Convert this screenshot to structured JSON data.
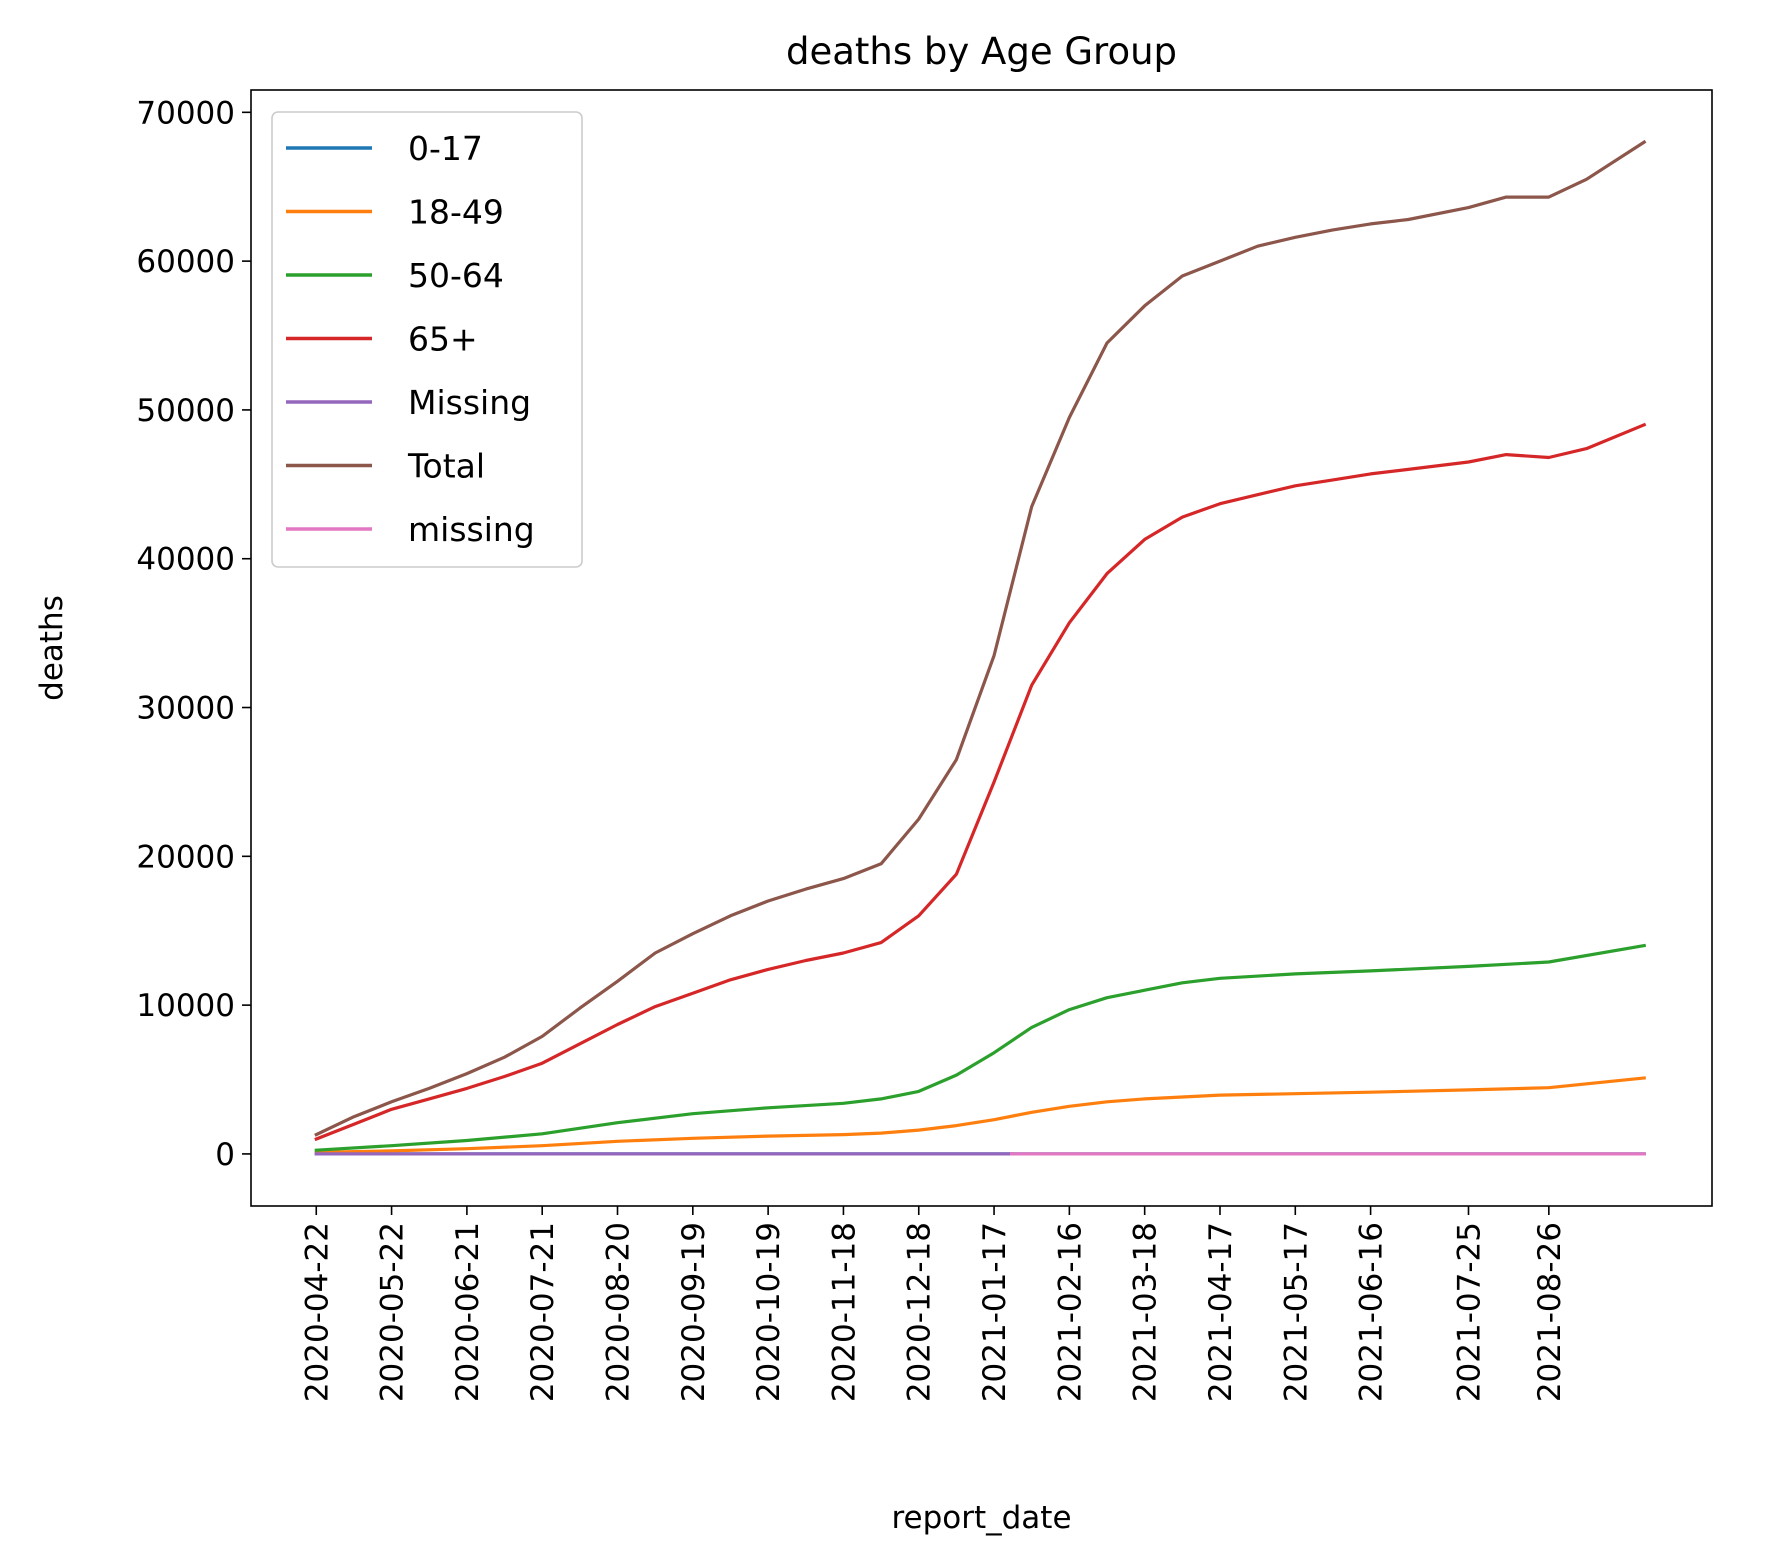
{
  "chart_data": {
    "type": "line",
    "title": "deaths by Age Group",
    "xlabel": "report_date",
    "ylabel": "deaths",
    "ylim": [
      -3500,
      71500
    ],
    "xlim": [
      "2020-03-27",
      "2021-10-30"
    ],
    "yticks": [
      0,
      10000,
      20000,
      30000,
      40000,
      50000,
      60000,
      70000
    ],
    "xticks": [
      "2020-04-22",
      "2020-05-22",
      "2020-06-21",
      "2020-07-21",
      "2020-08-20",
      "2020-09-19",
      "2020-10-19",
      "2020-11-18",
      "2020-12-18",
      "2021-01-17",
      "2021-02-16",
      "2021-03-18",
      "2021-04-17",
      "2021-05-17",
      "2021-06-16",
      "2021-07-25",
      "2021-08-26"
    ],
    "grid": false,
    "legend_position": "upper-left",
    "series": [
      {
        "name": "0-17",
        "color": "#1f77b4",
        "x": [
          "2020-04-22",
          "2021-10-03"
        ],
        "y": [
          0,
          0
        ]
      },
      {
        "name": "18-49",
        "color": "#ff7f0e",
        "x": [
          "2020-04-22",
          "2020-05-22",
          "2020-06-21",
          "2020-07-21",
          "2020-08-20",
          "2020-09-19",
          "2020-10-19",
          "2020-11-18",
          "2020-12-03",
          "2020-12-18",
          "2021-01-02",
          "2021-01-17",
          "2021-02-01",
          "2021-02-16",
          "2021-03-03",
          "2021-03-18",
          "2021-04-17",
          "2021-05-17",
          "2021-06-16",
          "2021-07-25",
          "2021-08-26",
          "2021-10-03"
        ],
        "y": [
          100,
          200,
          350,
          550,
          850,
          1050,
          1200,
          1300,
          1400,
          1600,
          1900,
          2300,
          2800,
          3200,
          3500,
          3700,
          3950,
          4050,
          4150,
          4300,
          4450,
          5100
        ]
      },
      {
        "name": "50-64",
        "color": "#2ca02c",
        "x": [
          "2020-04-22",
          "2020-05-22",
          "2020-06-21",
          "2020-07-21",
          "2020-08-20",
          "2020-09-19",
          "2020-10-19",
          "2020-11-18",
          "2020-12-03",
          "2020-12-18",
          "2021-01-02",
          "2021-01-17",
          "2021-02-01",
          "2021-02-16",
          "2021-03-03",
          "2021-03-18",
          "2021-04-02",
          "2021-04-17",
          "2021-05-17",
          "2021-06-16",
          "2021-07-25",
          "2021-08-26",
          "2021-10-03"
        ],
        "y": [
          250,
          550,
          900,
          1350,
          2100,
          2700,
          3100,
          3400,
          3700,
          4200,
          5300,
          6800,
          8500,
          9700,
          10500,
          11000,
          11500,
          11800,
          12100,
          12300,
          12600,
          12900,
          14000
        ]
      },
      {
        "name": "65+",
        "color": "#d62728",
        "x": [
          "2020-04-22",
          "2020-05-07",
          "2020-05-22",
          "2020-06-06",
          "2020-06-21",
          "2020-07-06",
          "2020-07-21",
          "2020-08-05",
          "2020-08-20",
          "2020-09-04",
          "2020-09-19",
          "2020-10-04",
          "2020-10-19",
          "2020-11-03",
          "2020-11-18",
          "2020-12-03",
          "2020-12-18",
          "2021-01-02",
          "2021-01-17",
          "2021-02-01",
          "2021-02-16",
          "2021-03-03",
          "2021-03-18",
          "2021-04-02",
          "2021-04-17",
          "2021-05-02",
          "2021-05-17",
          "2021-06-01",
          "2021-06-16",
          "2021-07-01",
          "2021-07-25",
          "2021-08-09",
          "2021-08-26",
          "2021-09-10",
          "2021-10-03"
        ],
        "y": [
          1000,
          2000,
          3000,
          3700,
          4400,
          5200,
          6100,
          7400,
          8700,
          9900,
          10800,
          11700,
          12400,
          13000,
          13500,
          14200,
          16000,
          18800,
          25000,
          31500,
          35700,
          39000,
          41300,
          42800,
          43700,
          44300,
          44900,
          45300,
          45700,
          46000,
          46500,
          47000,
          46800,
          47400,
          49000
        ]
      },
      {
        "name": "Missing",
        "color": "#9467bd",
        "x": [
          "2020-04-22",
          "2021-01-24"
        ],
        "y": [
          0,
          0
        ]
      },
      {
        "name": "Total",
        "color": "#8c564b",
        "x": [
          "2020-04-22",
          "2020-05-07",
          "2020-05-22",
          "2020-06-06",
          "2020-06-21",
          "2020-07-06",
          "2020-07-21",
          "2020-08-05",
          "2020-08-20",
          "2020-09-04",
          "2020-09-19",
          "2020-10-04",
          "2020-10-19",
          "2020-11-03",
          "2020-11-18",
          "2020-12-03",
          "2020-12-18",
          "2021-01-02",
          "2021-01-17",
          "2021-02-01",
          "2021-02-16",
          "2021-03-03",
          "2021-03-18",
          "2021-04-02",
          "2021-04-17",
          "2021-05-02",
          "2021-05-17",
          "2021-06-01",
          "2021-06-16",
          "2021-07-01",
          "2021-07-25",
          "2021-08-09",
          "2021-08-26",
          "2021-09-10",
          "2021-10-03"
        ],
        "y": [
          1300,
          2500,
          3500,
          4400,
          5400,
          6500,
          7900,
          9800,
          11600,
          13500,
          14800,
          16000,
          17000,
          17800,
          18500,
          19500,
          22500,
          26500,
          33500,
          43500,
          49500,
          54500,
          57000,
          59000,
          60000,
          61000,
          61600,
          62100,
          62500,
          62800,
          63600,
          64300,
          64300,
          65500,
          68000
        ]
      },
      {
        "name": "missing",
        "color": "#e377c2",
        "x": [
          "2021-01-24",
          "2021-10-03"
        ],
        "y": [
          0,
          0
        ]
      }
    ]
  }
}
